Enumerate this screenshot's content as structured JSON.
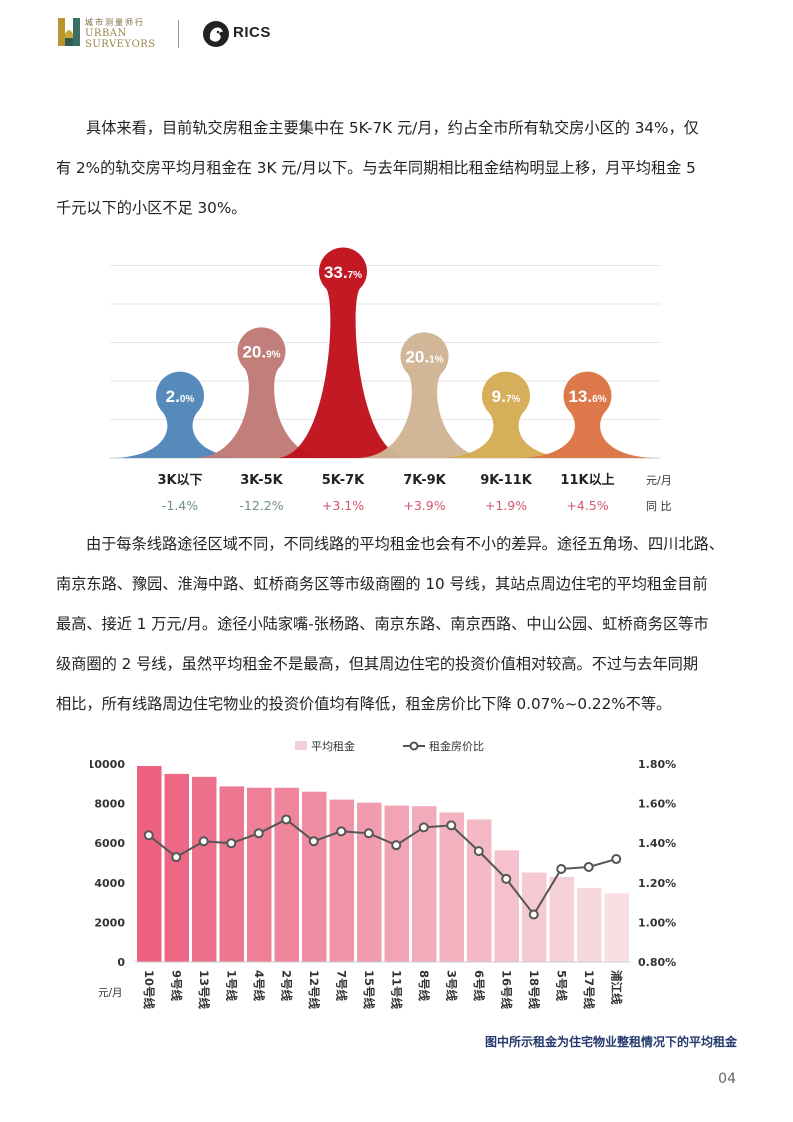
{
  "header": {
    "logo_cn": "城市测量师行",
    "logo_en_line1": "URBAN",
    "logo_en_line2": "SURVEYORS",
    "partner": "RICS"
  },
  "paragraph1": {
    "lines": [
      "具体来看，目前轨交房租金主要集中在 5K-7K 元/月，约占全市所有轨交房小区的 34%，仅",
      "有 2%的轨交房平均月租金在 3K 元/月以下。与去年同期相比租金结构明显上移，月平均租金 5",
      "千元以下的小区不足 30%。"
    ]
  },
  "paragraph2": {
    "lines": [
      "由于每条线路途径区域不同，不同线路的平均租金也会有不小的差异。途径五角场、四川北路、",
      "南京东路、豫园、淮海中路、虹桥商务区等市级商圈的 10 号线，其站点周边住宅的平均租金目前",
      "最高、接近 1 万元/月。途径小陆家嘴-张杨路、南京东路、南京西路、中山公园、虹桥商务区等市",
      "级商圈的 2 号线，虽然平均租金不是最高，但其周边住宅的投资价值相对较高。不过与去年同期",
      "相比，所有线路周边住宅物业的投资价值均有降低，租金房价比下降 0.07%~0.22%不等。"
    ]
  },
  "chart_data": [
    {
      "type": "bar",
      "categories": [
        "3K以下",
        "3K-5K",
        "5K-7K",
        "7K-9K",
        "9K-11K",
        "11K以上"
      ],
      "values": [
        2.0,
        20.9,
        33.7,
        20.1,
        9.7,
        13.6
      ],
      "value_labels": [
        {
          "main": "2.",
          "small": "0%"
        },
        {
          "main": "20.",
          "small": "9%"
        },
        {
          "main": "33.",
          "small": "7%"
        },
        {
          "main": "20.",
          "small": "1%"
        },
        {
          "main": "9.",
          "small": "7%"
        },
        {
          "main": "13.",
          "small": "6%"
        }
      ],
      "yoy": [
        "-1.4%",
        "-12.2%",
        "+3.1%",
        "+3.9%",
        "+1.9%",
        "+4.5%"
      ],
      "unit_label": "元/月",
      "yoy_label": "同  比",
      "colors": [
        "#4f86b8",
        "#c07a76",
        "#c0121e",
        "#cfb594",
        "#d6ab55",
        "#dc7444"
      ],
      "yoy_colors": {
        "negative": "#6f8f8a",
        "positive": "#d3566e"
      },
      "grid": true
    },
    {
      "type": "bar",
      "categories": [
        "10号线",
        "9号线",
        "13号线",
        "1号线",
        "4号线",
        "2号线",
        "12号线",
        "7号线",
        "15号线",
        "11号线",
        "8号线",
        "3号线",
        "6号线",
        "16号线",
        "18号线",
        "5号线",
        "17号线",
        "浦江线"
      ],
      "series": [
        {
          "name": "平均租金",
          "type": "bar",
          "axis": "left",
          "values": [
            9900,
            9500,
            9350,
            8870,
            8800,
            8800,
            8600,
            8200,
            8050,
            7900,
            7870,
            7550,
            7200,
            5640,
            4520,
            4300,
            3740,
            3470
          ]
        },
        {
          "name": "租金房价比",
          "type": "line",
          "axis": "right",
          "values": [
            1.44,
            1.33,
            1.41,
            1.4,
            1.45,
            1.52,
            1.41,
            1.46,
            1.45,
            1.39,
            1.48,
            1.49,
            1.36,
            1.22,
            1.04,
            1.27,
            1.28,
            1.32
          ]
        }
      ],
      "ylim": [
        0,
        10000
      ],
      "yticks": [
        "0",
        "2000",
        "4000",
        "6000",
        "8000",
        "10000"
      ],
      "y2lim": [
        0.8,
        1.8
      ],
      "y2ticks": [
        "0.80%",
        "1.00%",
        "1.20%",
        "1.40%",
        "1.60%",
        "1.80%"
      ],
      "ylabel": "元/月",
      "legend": "top",
      "grid": false
    }
  ],
  "caption": "图中所示租金为住宅物业整租情况下的平均租金",
  "page_number": "04"
}
